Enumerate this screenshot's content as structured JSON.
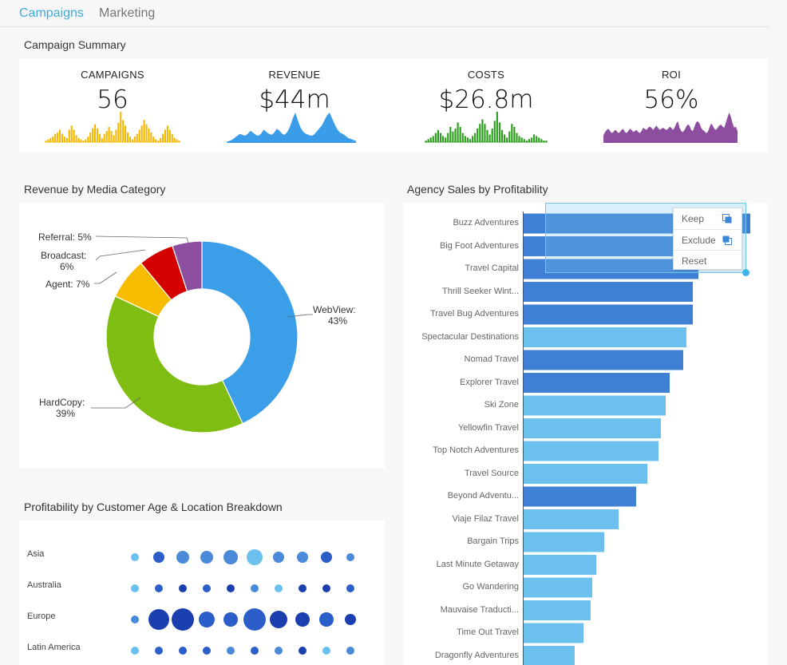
{
  "tabs": [
    {
      "label": "Campaigns",
      "active": true
    },
    {
      "label": "Marketing",
      "active": false
    }
  ],
  "summary": {
    "title": "Campaign Summary",
    "kpis": [
      {
        "label": "CAMPAIGNS",
        "value": "56",
        "color": "#f5b700"
      },
      {
        "label": "REVENUE",
        "value": "$44m",
        "color": "#3b9de9"
      },
      {
        "label": "COSTS",
        "value": "$26.8m",
        "color": "#2e9e1e"
      },
      {
        "label": "ROI",
        "value": "56%",
        "color": "#8e4ea0"
      }
    ]
  },
  "revenue_by_media": {
    "title": "Revenue by Media Category",
    "labels": {
      "webview": [
        "WebView:",
        "43%"
      ],
      "hardcopy": [
        "HardCopy:",
        "39%"
      ],
      "agent": "Agent: 7%",
      "broadcast": [
        "Broadcast:",
        "6%"
      ],
      "referral": "Referral: 5%"
    }
  },
  "profitability": {
    "title": "Profitability by Customer Age & Location Breakdown",
    "rows": [
      "Asia",
      "Australia",
      "Europe",
      "Latin America"
    ]
  },
  "agency_sales": {
    "title": "Agency Sales by Profitability",
    "agencies": [
      "Buzz Adventures",
      "Big Foot Adventures",
      "Travel Capital",
      "Thrill Seeker Wint...",
      "Travel Bug Adventures",
      "Spectacular Destinations",
      "Nomad Travel",
      "Explorer Travel",
      "Ski Zone",
      "Yellowfin Travel",
      "Top Notch Adventures",
      "Travel Source",
      "Beyond Adventu...",
      "Viaje Filaz Travel",
      "Bargain Trips",
      "Last Minute Getaway",
      "Go Wandering",
      "Mauvaise Traducti...",
      "Time Out Travel",
      "Dragonfly Adventures"
    ]
  },
  "context_menu": {
    "keep": "Keep",
    "exclude": "Exclude",
    "reset": "Reset"
  },
  "chart_data": [
    {
      "type": "pie",
      "title": "Revenue by Media Category",
      "categories": [
        "WebView",
        "HardCopy",
        "Agent",
        "Broadcast",
        "Referral"
      ],
      "values": [
        43,
        39,
        7,
        6,
        5
      ],
      "colors": [
        "#3a9ee8",
        "#7fbd12",
        "#f7bb00",
        "#d40000",
        "#8e4ea0"
      ]
    },
    {
      "type": "bar",
      "title": "Agency Sales by Profitability",
      "categories": [
        "Buzz Adventures",
        "Big Foot Adventures",
        "Travel Capital",
        "Thrill Seeker Wint...",
        "Travel Bug Adventures",
        "Spectacular Destinations",
        "Nomad Travel",
        "Explorer Travel",
        "Ski Zone",
        "Yellowfin Travel",
        "Top Notch Adventures",
        "Travel Source",
        "Beyond Adventu...",
        "Viaje Filaz Travel",
        "Bargain Trips",
        "Last Minute Getaway",
        "Go Wandering",
        "Mauvaise Traducti...",
        "Time Out Travel",
        "Dragonfly Adventures"
      ],
      "values": [
        284,
        239,
        219,
        212,
        212,
        204,
        200,
        183,
        178,
        172,
        169,
        155,
        141,
        119,
        101,
        91,
        86,
        84,
        75,
        64
      ],
      "profit_level": [
        "high",
        "high",
        "high",
        "high",
        "high",
        "low",
        "high",
        "high",
        "low",
        "low",
        "low",
        "low",
        "high",
        "low",
        "low",
        "low",
        "low",
        "low",
        "low",
        "low"
      ],
      "colors": {
        "high": "#3f7fd4",
        "low": "#6cc0ee"
      }
    },
    {
      "type": "scatter",
      "title": "Profitability by Customer Age & Location Breakdown",
      "rows": [
        "Asia",
        "Australia",
        "Europe",
        "Latin America"
      ],
      "sizes": [
        [
          5,
          7,
          8,
          8,
          9,
          10,
          7,
          7,
          7,
          5
        ],
        [
          5,
          5,
          5,
          5,
          5,
          5,
          5,
          5,
          5,
          5
        ],
        [
          5,
          13,
          14,
          10,
          9,
          14,
          11,
          9,
          9,
          7
        ],
        [
          5,
          5,
          5,
          5,
          5,
          5,
          5,
          5,
          5,
          5
        ]
      ],
      "shades": [
        [
          0,
          2,
          1,
          1,
          1,
          0,
          1,
          1,
          2,
          1
        ],
        [
          0,
          2,
          3,
          2,
          3,
          1,
          0,
          3,
          3,
          2
        ],
        [
          1,
          3,
          3,
          2,
          2,
          2,
          3,
          3,
          2,
          3
        ],
        [
          0,
          2,
          2,
          2,
          1,
          2,
          1,
          3,
          0,
          1
        ]
      ],
      "palette": [
        "#6cc0ee",
        "#4a8ad8",
        "#2b5ec9",
        "#1b3fae"
      ]
    },
    {
      "type": "bar",
      "title": "CAMPAIGNS",
      "values": [
        1,
        2,
        3,
        4,
        6,
        7,
        9,
        6,
        4,
        3,
        9,
        12,
        9,
        5,
        3,
        2,
        1,
        2,
        4,
        7,
        10,
        13,
        10,
        6,
        3,
        6,
        8,
        11,
        8,
        5,
        9,
        14,
        22,
        16,
        12,
        7,
        4,
        2,
        4,
        6,
        9,
        12,
        16,
        13,
        10,
        7,
        4,
        2,
        1,
        3,
        6,
        9,
        12,
        9,
        6,
        3,
        2,
        1
      ],
      "color": "#f5b700"
    },
    {
      "type": "area",
      "title": "REVENUE",
      "values": [
        1,
        2,
        3,
        5,
        7,
        9,
        8,
        7,
        9,
        12,
        10,
        8,
        7,
        9,
        13,
        11,
        9,
        8,
        10,
        14,
        12,
        9,
        8,
        11,
        16,
        24,
        30,
        22,
        15,
        11,
        9,
        8,
        7,
        8,
        11,
        14,
        17,
        22,
        27,
        30,
        24,
        18,
        13,
        10,
        9,
        7,
        5,
        4,
        3,
        2
      ],
      "color": "#3b9de9"
    },
    {
      "type": "bar",
      "title": "COSTS",
      "values": [
        1,
        2,
        3,
        4,
        6,
        8,
        6,
        4,
        3,
        6,
        10,
        7,
        9,
        13,
        10,
        6,
        4,
        3,
        2,
        4,
        6,
        9,
        12,
        15,
        12,
        8,
        5,
        9,
        14,
        20,
        13,
        8,
        5,
        3,
        7,
        12,
        10,
        6,
        4,
        3,
        2,
        1,
        2,
        3,
        5,
        4,
        3,
        2,
        1,
        1
      ],
      "color": "#2e9e1e"
    },
    {
      "type": "area",
      "title": "ROI",
      "values": [
        7,
        10,
        12,
        13,
        11,
        9,
        10,
        12,
        11,
        9,
        10,
        12,
        13,
        10,
        9,
        11,
        13,
        12,
        10,
        11,
        12,
        10,
        9,
        11,
        14,
        13,
        12,
        14,
        15,
        14,
        12,
        14,
        16,
        14,
        12,
        13,
        14,
        13,
        12,
        13,
        15,
        14,
        12,
        14,
        18,
        20,
        14,
        11,
        10,
        12,
        15,
        17,
        16,
        12,
        11,
        15,
        19,
        20,
        18,
        14,
        12,
        11,
        9,
        10,
        14,
        18,
        16,
        13,
        12,
        14,
        16,
        17,
        15,
        14,
        19,
        24,
        28,
        24,
        18,
        14,
        15,
        11
      ],
      "color": "#8e4ea0"
    }
  ]
}
